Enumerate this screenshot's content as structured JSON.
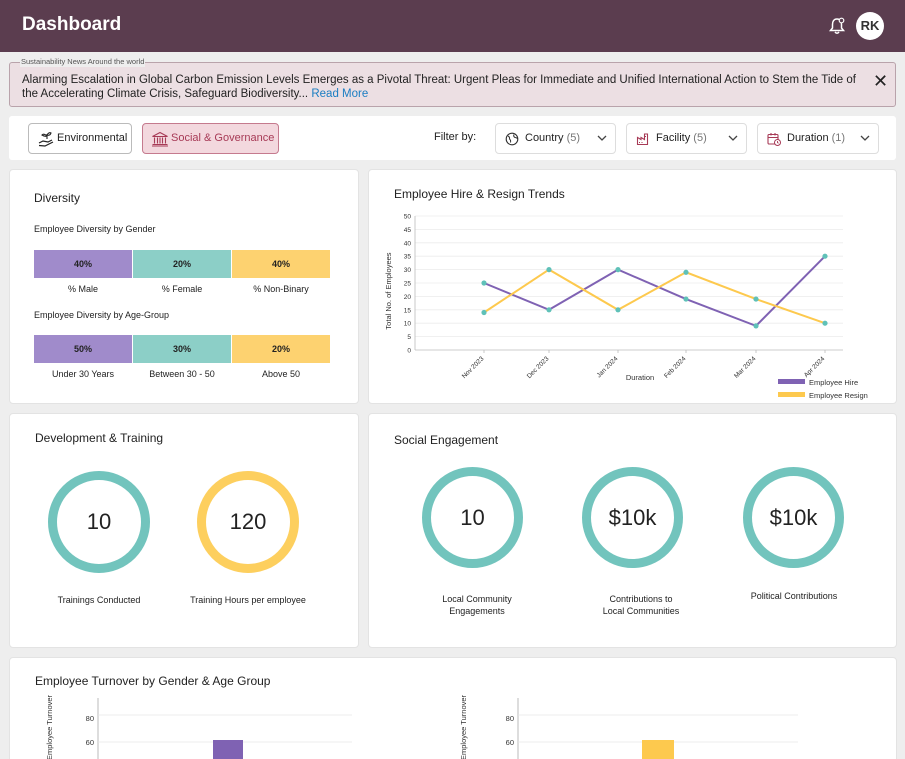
{
  "header": {
    "title": "Dashboard",
    "avatar": "RK"
  },
  "news": {
    "legend": "Sustainability News Around the world",
    "text": "Alarming Escalation in Global Carbon Emission Levels Emerges as a Pivotal Threat: Urgent Pleas for Immediate and Unified International Action to Stem the Tide of the Accelerating Climate Crisis, Safeguard Biodiversity...",
    "read_more": "Read More",
    "close": "✕"
  },
  "tabs": {
    "environmental": "Environmental",
    "social": "Social & Governance"
  },
  "filters": {
    "label": "Filter by:",
    "country": {
      "label": "Country",
      "count": "(5)"
    },
    "facility": {
      "label": "Facility",
      "count": "(5)"
    },
    "duration": {
      "label": "Duration",
      "count": "(1)"
    }
  },
  "diversity": {
    "title": "Diversity",
    "gender_title": "Employee Diversity by Gender",
    "gender": [
      {
        "value": "40%",
        "label": "% Male",
        "color": "#a08bcb"
      },
      {
        "value": "20%",
        "label": "% Female",
        "color": "#8ccfc7"
      },
      {
        "value": "40%",
        "label": "% Non-Binary",
        "color": "#fdd270"
      }
    ],
    "age_title": "Employee Diversity by Age-Group",
    "age": [
      {
        "value": "50%",
        "label": "Under 30 Years",
        "color": "#a08bcb"
      },
      {
        "value": "30%",
        "label": "Between 30 - 50",
        "color": "#8ccfc7"
      },
      {
        "value": "20%",
        "label": "Above 50",
        "color": "#fdd270"
      }
    ]
  },
  "trends": {
    "title": "Employee Hire & Resign Trends",
    "ylabel": "Total No. of Employees",
    "xlabel": "Duration",
    "legend_hire": "Employee Hire",
    "legend_resign": "Employee Resign"
  },
  "training": {
    "title": "Development & Training",
    "trainings": {
      "value": "10",
      "label": "Trainings Conducted"
    },
    "hours": {
      "value": "120",
      "label": "Training Hours per employee"
    }
  },
  "social": {
    "title": "Social Engagement",
    "engagements": {
      "value": "10",
      "label1": "Local Community",
      "label2": "Engagements"
    },
    "contributions": {
      "value": "$10k",
      "label1": "Contributions to",
      "label2": "Local Communities"
    },
    "political": {
      "value": "$10k",
      "label": "Political Contributions"
    }
  },
  "turnover": {
    "title": "Employee Turnover by Gender & Age Group",
    "ylabel": "Employee Turnover"
  },
  "chart_data": [
    {
      "type": "line",
      "title": "Employee Hire & Resign Trends",
      "xlabel": "Duration",
      "ylabel": "Total No. of Employees",
      "ylim": [
        0,
        50
      ],
      "yticks": [
        0,
        5,
        10,
        15,
        20,
        25,
        30,
        35,
        40,
        45,
        50
      ],
      "categories": [
        "Nov 2023",
        "Dec 2023",
        "Jan 2024",
        "Feb 2024",
        "Mar 2024",
        "Apr 2024"
      ],
      "series": [
        {
          "name": "Employee Hire",
          "color": "#7f62b3",
          "values": [
            25,
            15,
            30,
            19,
            9,
            35
          ]
        },
        {
          "name": "Employee Resign",
          "color": "#fdc94e",
          "values": [
            14,
            30,
            15,
            29,
            19,
            10
          ]
        }
      ],
      "legend": "bottom-right",
      "grid": true
    },
    {
      "type": "bar",
      "title": "Employee Turnover by Gender & Age Group",
      "ylabel": "Employee Turnover",
      "yticks": [
        60,
        80
      ],
      "series": [
        {
          "values": [
            60
          ],
          "color": "#7f62b3"
        }
      ]
    },
    {
      "type": "bar",
      "ylabel": "Employee Turnover",
      "yticks": [
        60,
        80
      ],
      "series": [
        {
          "values": [
            60
          ],
          "color": "#fdc94e"
        }
      ]
    }
  ]
}
